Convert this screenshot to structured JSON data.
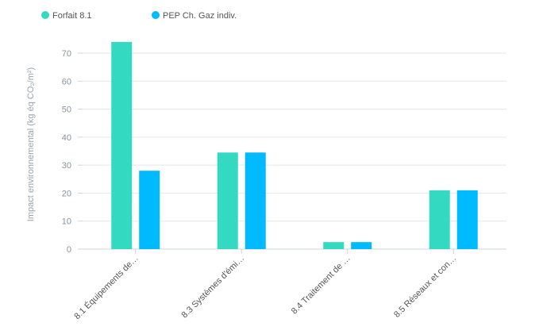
{
  "chart_data": {
    "type": "bar",
    "categories": [
      "8.1 Équipements de…",
      "8.3 Systèmes d'émi…",
      "8.4 Traitement de …",
      "8.5 Réseaux et con…"
    ],
    "series": [
      {
        "name": "Forfait 8.1",
        "color": "#33d9c1",
        "values": [
          74,
          34.5,
          2.5,
          21
        ]
      },
      {
        "name": "PEP Ch. Gaz indiv.",
        "color": "#00baff",
        "values": [
          28,
          34.5,
          2.5,
          21
        ]
      }
    ],
    "ylabel": "Impact environnemental (kg éq CO₂/m²)",
    "ylim": [
      0,
      74
    ],
    "yticks": [
      0,
      10,
      20,
      30,
      40,
      50,
      60,
      70
    ],
    "grid": true,
    "legend": "top-left"
  }
}
